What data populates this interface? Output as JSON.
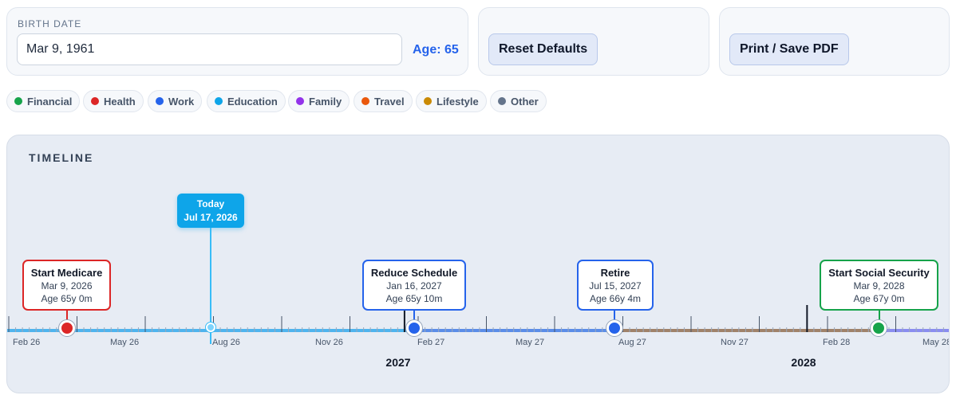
{
  "birth": {
    "label": "BIRTH DATE",
    "value": "Mar 9, 1961",
    "age": "Age: 65"
  },
  "actions": {
    "reset": "Reset Defaults",
    "print": "Print / Save PDF"
  },
  "legend": [
    {
      "label": "Financial",
      "color": "#16a34a"
    },
    {
      "label": "Health",
      "color": "#dc2626"
    },
    {
      "label": "Work",
      "color": "#2563eb"
    },
    {
      "label": "Education",
      "color": "#0ea5e9"
    },
    {
      "label": "Family",
      "color": "#9333ea"
    },
    {
      "label": "Travel",
      "color": "#ea580c"
    },
    {
      "label": "Lifestyle",
      "color": "#ca8a04"
    },
    {
      "label": "Other",
      "color": "#64748b"
    }
  ],
  "timeline": {
    "title": "TIMELINE",
    "months": [
      "Feb 26",
      "May 26",
      "Aug 26",
      "Nov 26",
      "Feb 27",
      "May 27",
      "Aug 27",
      "Nov 27",
      "Feb 28",
      "May 28"
    ],
    "years": [
      "2027",
      "2028"
    ],
    "today": {
      "label": "Today",
      "date": "Jul 17, 2026"
    },
    "events": [
      {
        "title": "Start Medicare",
        "date": "Mar 9, 2026",
        "age": "Age 65y 0m",
        "category": "Health",
        "color": "#dc2626"
      },
      {
        "title": "Reduce Schedule",
        "date": "Jan 16, 2027",
        "age": "Age 65y 10m",
        "category": "Work",
        "color": "#2563eb"
      },
      {
        "title": "Retire",
        "date": "Jul 15, 2027",
        "age": "Age 66y 4m",
        "category": "Work",
        "color": "#2563eb"
      },
      {
        "title": "Start Social Security",
        "date": "Mar 9, 2028",
        "age": "Age 67y 0m",
        "category": "Financial",
        "color": "#16a34a"
      }
    ]
  }
}
